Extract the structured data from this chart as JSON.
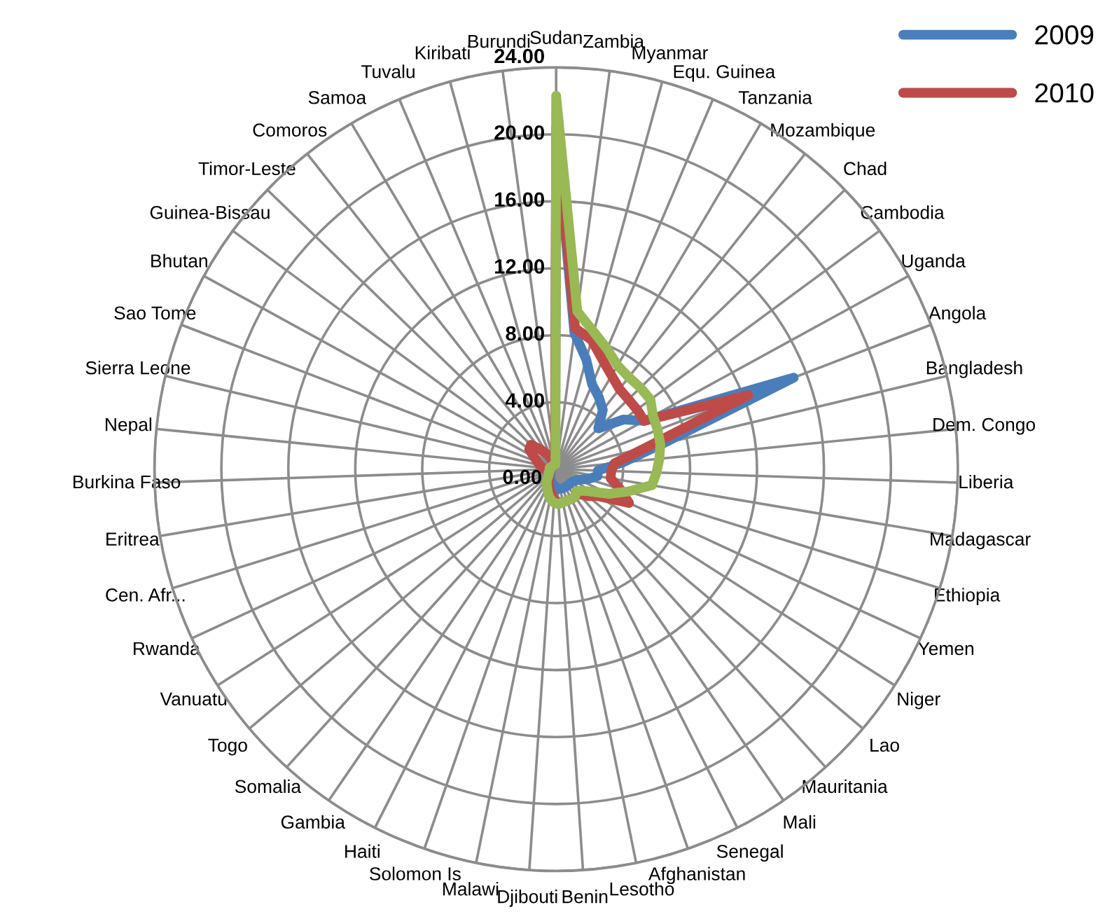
{
  "chart_data": {
    "type": "radar",
    "categories": [
      "Sudan",
      "Zambia",
      "Myanmar",
      "Equ. Guinea",
      "Tanzania",
      "Mozambique",
      "Chad",
      "Cambodia",
      "Uganda",
      "Angola",
      "Bangladesh",
      "Dem. Congo",
      "Liberia",
      "Madagascar",
      "Ethiopia",
      "Yemen",
      "Niger",
      "Lao",
      "Mauritania",
      "Mali",
      "Senegal",
      "Afghanistan",
      "Lesotho",
      "Benin",
      "Djibouti",
      "Malawi",
      "Solomon Is",
      "Haiti",
      "Gambia",
      "Somalia",
      "Togo",
      "Vanuatu",
      "Rwanda",
      "Cen. Afr...",
      "Eritrea",
      "Burkina Faso",
      "Nepal",
      "Sierra Leone",
      "Sao Tome",
      "Bhutan",
      "Guinea-Bissau",
      "Timor-Leste",
      "Comoros",
      "Samoa",
      "Tuvalu",
      "Kiribati",
      "Burundi"
    ],
    "series": [
      {
        "name": "2009",
        "color": "#4a7ebb",
        "values": [
          20,
          8.2,
          6.8,
          5.5,
          5,
          4.5,
          3.5,
          5,
          6,
          15.2,
          6.5,
          4,
          2.5,
          2.5,
          2,
          1.5,
          1.3,
          1.2,
          1.2,
          1.2,
          1.2,
          1.2,
          1.2,
          1.2,
          1,
          1,
          0.8,
          0.8,
          0.6,
          0.5,
          0.5,
          0.4,
          0.4,
          0.4,
          0.4,
          0.4,
          0.4,
          0.4,
          0.4,
          0.4,
          0.4,
          0.4,
          0.4,
          0.4,
          0.4,
          0.4,
          0.4
        ]
      },
      {
        "name": "2010",
        "color": "#be4b48",
        "values": [
          20.4,
          8.5,
          8,
          7.1,
          6.5,
          6.1,
          6,
          6,
          6,
          12.3,
          5.5,
          3.5,
          3.3,
          3.3,
          4,
          4.8,
          3,
          2.5,
          2,
          2,
          2,
          2,
          2,
          2,
          1.8,
          1.5,
          1.2,
          1,
          0.8,
          0.6,
          0.5,
          0.5,
          0.5,
          0.5,
          0.5,
          0.6,
          0.8,
          1,
          1.2,
          1.5,
          2,
          2.1,
          1.5,
          1,
          0.6,
          0.5,
          0.5
        ]
      },
      {
        "color": "#98b954",
        "values": [
          22.3,
          9.5,
          8.5,
          7.8,
          7.2,
          7,
          7,
          7,
          6.6,
          6.5,
          6.4,
          6.2,
          6,
          5.8,
          4.5,
          3.5,
          2.5,
          2,
          1.8,
          2,
          2,
          2,
          2,
          2.1,
          2,
          1.8,
          1.5,
          1.2,
          1,
          0.8,
          0.6,
          0.5,
          0.5,
          0.4,
          0.4,
          0.4,
          0.4,
          0.4,
          0.3,
          0.3,
          0.3,
          0.3,
          0.3,
          0.3,
          0.3,
          0.3,
          0.3
        ]
      }
    ],
    "ylim": [
      0,
      24
    ],
    "yticks": [
      {
        "value": 0,
        "label": "0.00"
      },
      {
        "value": 4,
        "label": "4.00"
      },
      {
        "value": 8,
        "label": "8.00"
      },
      {
        "value": 12,
        "label": "12.00"
      },
      {
        "value": 16,
        "label": "16.00"
      },
      {
        "value": 20,
        "label": "20.00"
      },
      {
        "value": 24,
        "label": "24.00"
      }
    ],
    "grid": true,
    "legend": "top right",
    "marker": "none"
  }
}
